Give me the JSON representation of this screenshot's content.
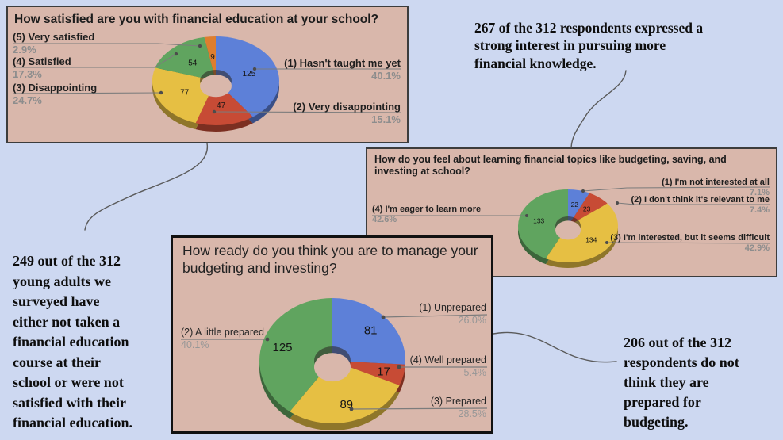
{
  "page": {
    "background": "#cdd8f1",
    "panel_background": "#d9b7ab"
  },
  "colors": {
    "blue": "#5d80d8",
    "red": "#c74b35",
    "yellow": "#e6bf43",
    "green": "#60a45f",
    "orange": "#dd7e2f",
    "panel_bg": "#d9b7ab",
    "pct_text": "#8d8d8d",
    "leader_line": "#7c7c7c",
    "connector_line": "#5a5a5a"
  },
  "chart_data": [
    {
      "type": "pie",
      "donut": true,
      "title": "How satisfied are you with financial education at your school?",
      "total": 312,
      "slices": [
        {
          "label": "(1) Hasn't taught me yet",
          "value": 125,
          "pct": "40.1%",
          "color": "#5d80d8"
        },
        {
          "label": "(2) Very disappointing",
          "value": 47,
          "pct": "15.1%",
          "color": "#c74b35"
        },
        {
          "label": "(3) Disappointing",
          "value": 77,
          "pct": "24.7%",
          "color": "#e6bf43"
        },
        {
          "label": "(4) Satisfied",
          "value": 54,
          "pct": "17.3%",
          "color": "#60a45f"
        },
        {
          "label": "(5) Very satisfied",
          "value": 9,
          "pct": "2.9%",
          "color": "#dd7e2f"
        }
      ]
    },
    {
      "type": "pie",
      "donut": true,
      "title": "How do you feel about learning financial topics like budgeting, saving, and\ninvesting at school?",
      "total": 312,
      "slices": [
        {
          "label": "(1) I'm not interested at all",
          "value": 22,
          "pct": "7.1%",
          "color": "#5d80d8"
        },
        {
          "label": "(2) I don't think it's relevant to me",
          "value": 23,
          "pct": "7.4%",
          "color": "#c74b35"
        },
        {
          "label": "(3) I'm interested, but it seems difficult",
          "value": 134,
          "pct": "42.9%",
          "color": "#e6bf43"
        },
        {
          "label": "(4) I'm eager to learn more",
          "value": 133,
          "pct": "42.6%",
          "color": "#60a45f"
        }
      ]
    },
    {
      "type": "pie",
      "donut": true,
      "title": "How ready do you think you are to manage your\nbudgeting and investing?",
      "total": 312,
      "slices": [
        {
          "label": "(1) Unprepared",
          "value": 81,
          "pct": "26.0%",
          "color": "#5d80d8"
        },
        {
          "label": "(4) Well prepared",
          "value": 17,
          "pct": "5.4%",
          "color": "#c74b35"
        },
        {
          "label": "(3) Prepared",
          "value": 89,
          "pct": "28.5%",
          "color": "#e6bf43"
        },
        {
          "label": "(2) A little prepared",
          "value": 125,
          "pct": "40.1%",
          "color": "#60a45f"
        }
      ]
    }
  ],
  "annotations": [
    {
      "text": "267 of the 312 respondents expressed a\nstrong interest in pursuing more\nfinancial knowledge."
    },
    {
      "text": "249 out of the 312\nyoung adults we\nsurveyed have\neither not taken a\nfinancial education\ncourse at their\nschool or were not\nsatisfied with their\nfinancial education."
    },
    {
      "text": "206 out of the 312\nrespondents do not\nthink they are\nprepared for\nbudgeting."
    }
  ]
}
